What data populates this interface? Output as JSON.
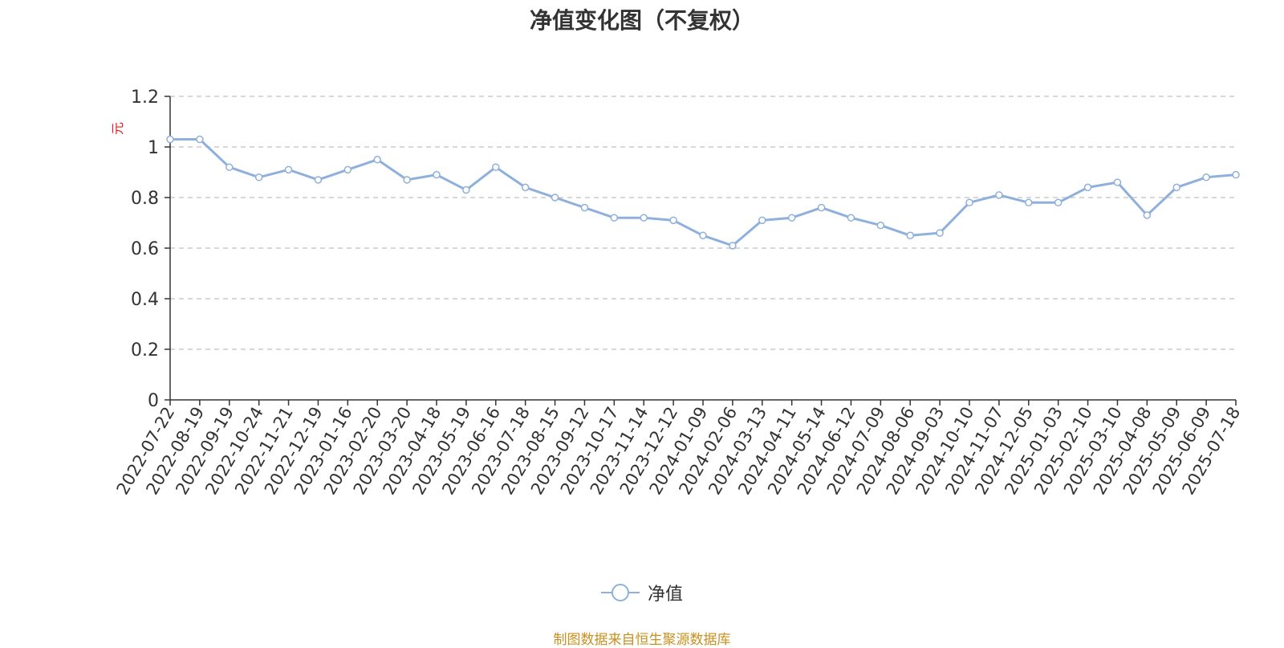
{
  "chart_data": {
    "type": "line",
    "title": "净值变化图（不复权）",
    "ylabel": "元",
    "ylim": [
      0,
      1.2
    ],
    "yticks": [
      "0",
      "0.2",
      "0.4",
      "0.6",
      "0.8",
      "1",
      "1.2"
    ],
    "grid": true,
    "legend_placement": "bottom-center",
    "x": [
      "2022-07-22",
      "2022-08-19",
      "2022-09-19",
      "2022-10-24",
      "2022-11-21",
      "2022-12-19",
      "2023-01-16",
      "2023-02-20",
      "2023-03-20",
      "2023-04-18",
      "2023-05-19",
      "2023-06-16",
      "2023-07-18",
      "2023-08-15",
      "2023-09-12",
      "2023-10-17",
      "2023-11-14",
      "2023-12-12",
      "2024-01-09",
      "2024-02-06",
      "2024-03-13",
      "2024-04-11",
      "2024-05-14",
      "2024-06-12",
      "2024-07-09",
      "2024-08-06",
      "2024-09-03",
      "2024-10-10",
      "2024-11-07",
      "2024-12-05",
      "2025-01-03",
      "2025-02-10",
      "2025-03-10",
      "2025-04-08",
      "2025-05-09",
      "2025-06-09",
      "2025-07-18"
    ],
    "series": [
      {
        "name": "净值",
        "color": "#8fb0dc",
        "values": [
          1.03,
          1.03,
          0.92,
          0.88,
          0.91,
          0.87,
          0.91,
          0.95,
          0.87,
          0.89,
          0.83,
          0.92,
          0.84,
          0.8,
          0.76,
          0.72,
          0.72,
          0.71,
          0.65,
          0.61,
          0.71,
          0.72,
          0.76,
          0.72,
          0.69,
          0.65,
          0.66,
          0.78,
          0.81,
          0.78,
          0.78,
          0.84,
          0.86,
          0.73,
          0.84,
          0.88,
          0.89
        ]
      }
    ]
  },
  "legend": {
    "label": "净值"
  },
  "source_note": "制图数据来自恒生聚源数据库"
}
